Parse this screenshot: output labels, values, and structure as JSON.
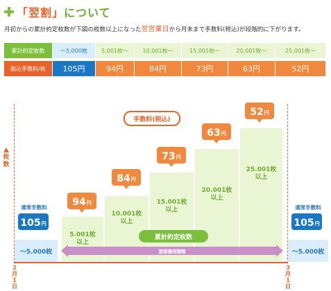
{
  "header": {
    "title_open": "「翌割」",
    "title_rest": "について"
  },
  "description": {
    "part1": "月初からの累計約定枚数が下図の枚数以上になった",
    "highlight": "翌営業日",
    "part2": "から月末まで手数料(税込)が段階的に下がります。"
  },
  "table": {
    "row1_head": "累計約定枚数",
    "row2_head": "税込手数料/枚",
    "tiers": [
      "〜5,000枚",
      "5,001枚〜",
      "10,001枚〜",
      "15,001枚〜",
      "20,001枚〜",
      "25,001枚〜"
    ],
    "fees": [
      "105円",
      "94円",
      "84円",
      "73円",
      "63円",
      "52円"
    ]
  },
  "chart": {
    "y_label": "枚数",
    "bubble_fee": "手数料(税込)",
    "bubble_count": "累計約定枚数",
    "period_label": "翌割適用期間",
    "left_caption": "通常手数料",
    "right_caption": "通常手数料",
    "left_fee": "105",
    "right_fee": "105",
    "yen": "円",
    "left_box": "〜5.000枚",
    "right_box": "〜5.000枚",
    "steps": [
      {
        "fee": "94",
        "line1": "5.001枚",
        "line2": "以上"
      },
      {
        "fee": "84",
        "line1": "10.001枚",
        "line2": "以上"
      },
      {
        "fee": "73",
        "line1": "15.001枚",
        "line2": "以上"
      },
      {
        "fee": "63",
        "line1": "20.001枚",
        "line2": "以上"
      },
      {
        "fee": "52",
        "line1": "25.001枚",
        "line2": "以上"
      }
    ],
    "date_start": "2月1日",
    "date_end": "3月1日"
  },
  "colors": {
    "green": "#7bbf3a",
    "orange": "#e8622a",
    "blue": "#1a78c2",
    "purple": "#c98fc8"
  }
}
